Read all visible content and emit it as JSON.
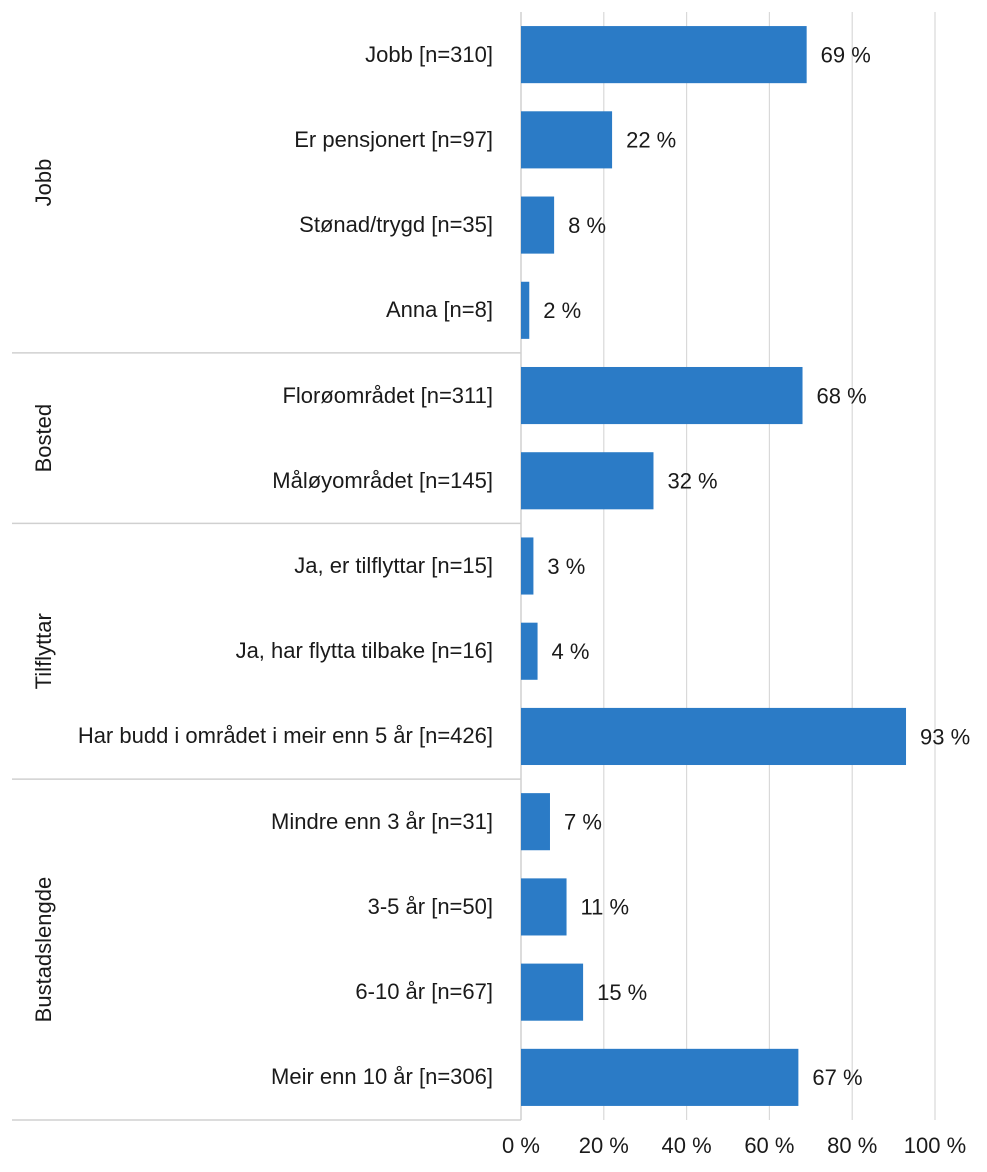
{
  "chart_data": {
    "type": "bar",
    "orientation": "horizontal",
    "color": "#2b7bc6",
    "grid": true,
    "xlim": [
      0,
      100
    ],
    "xticks": [
      {
        "value": 0,
        "label": "0 %"
      },
      {
        "value": 20,
        "label": "20 %"
      },
      {
        "value": 40,
        "label": "40 %"
      },
      {
        "value": 60,
        "label": "60 %"
      },
      {
        "value": 80,
        "label": "80 %"
      },
      {
        "value": 100,
        "label": "100 %"
      }
    ],
    "groups": [
      {
        "name": "Jobb",
        "categories": [
          "Jobb [n=310]",
          "Er pensjonert [n=97]",
          "Stønad/trygd [n=35]",
          "Anna [n=8]"
        ],
        "values": [
          69,
          22,
          8,
          2
        ],
        "value_labels": [
          "69 %",
          "22 %",
          "8 %",
          "2 %"
        ]
      },
      {
        "name": "Bosted",
        "categories": [
          "Florøområdet [n=311]",
          "Måløyområdet [n=145]"
        ],
        "values": [
          68,
          32
        ],
        "value_labels": [
          "68 %",
          "32 %"
        ]
      },
      {
        "name": "Tilflyttar",
        "categories": [
          "Ja, er tilflyttar [n=15]",
          "Ja, har flytta tilbake [n=16]",
          "Har budd i området i meir enn 5 år [n=426]"
        ],
        "values": [
          3,
          4,
          93
        ],
        "value_labels": [
          "3 %",
          "4 %",
          "93 %"
        ]
      },
      {
        "name": "Bustadslengde",
        "categories": [
          "Mindre enn 3 år [n=31]",
          "3-5 år [n=50]",
          "6-10 år [n=67]",
          "Meir enn 10 år [n=306]"
        ],
        "values": [
          7,
          11,
          15,
          67
        ],
        "value_labels": [
          "7 %",
          "11 %",
          "15 %",
          "67 %"
        ]
      }
    ]
  }
}
